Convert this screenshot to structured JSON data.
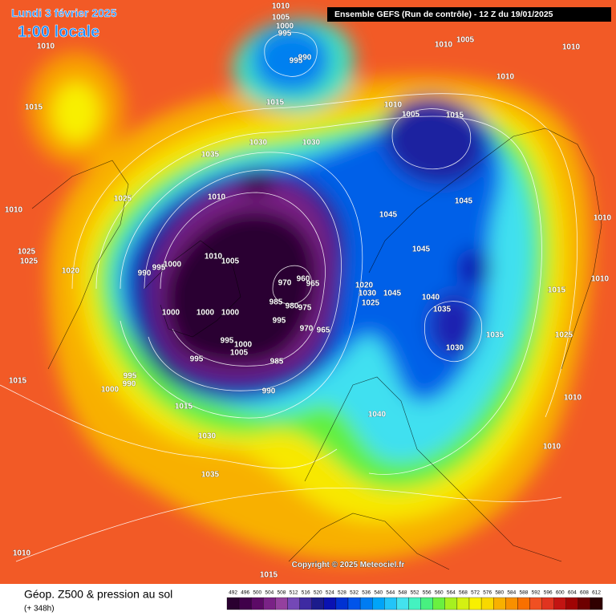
{
  "header": {
    "date": "Lundi 3 février 2025",
    "time": "1:00 locale",
    "run": "Ensemble GEFS  (Run de contrôle)  -  12 Z du 19/01/2025",
    "copyright": "Copyright © 2025 Meteociel.fr"
  },
  "footer": {
    "title": "Géop. Z500 & pression au sol",
    "lead": "(+ 348h)"
  },
  "isobar_labels": [
    "1010",
    "1015",
    "1010",
    "1025",
    "1025",
    "1020",
    "1025",
    "1035",
    "1030",
    "1030",
    "1015",
    "1010",
    "1005",
    "1000",
    "995",
    "990",
    "995",
    "1005",
    "1010",
    "1010",
    "1010",
    "1010",
    "1005",
    "1015",
    "1045",
    "1045",
    "1045",
    "1010",
    "1010",
    "1015",
    "1025",
    "1010",
    "1010",
    "1040",
    "1035",
    "1035",
    "1030",
    "1020",
    "1030",
    "1045",
    "1025",
    "1010",
    "1010",
    "1005",
    "990",
    "995",
    "1000",
    "970",
    "960",
    "965",
    "985",
    "980",
    "975",
    "995",
    "970",
    "965",
    "1000",
    "1000",
    "1000",
    "995",
    "1000",
    "1005",
    "995",
    "985",
    "995",
    "990",
    "1000",
    "1015",
    "1015",
    "990",
    "1040",
    "1030",
    "1035",
    "1010",
    "1015"
  ],
  "colorbar": {
    "ticks": [
      "492",
      "496",
      "500",
      "504",
      "508",
      "512",
      "516",
      "520",
      "524",
      "528",
      "532",
      "536",
      "540",
      "544",
      "548",
      "552",
      "556",
      "560",
      "564",
      "568",
      "572",
      "576",
      "580",
      "584",
      "588",
      "592",
      "596",
      "600",
      "604",
      "608",
      "612"
    ],
    "colors": [
      "#2a0030",
      "#40004a",
      "#5c0a66",
      "#7a2286",
      "#94409e",
      "#7448b6",
      "#3e2aa2",
      "#1c1c8c",
      "#0a12b2",
      "#0032d2",
      "#0054ea",
      "#007cf2",
      "#00a4f8",
      "#22c4f8",
      "#44e2ee",
      "#44f2c0",
      "#48f080",
      "#6af040",
      "#a6f020",
      "#d4f012",
      "#f8f000",
      "#f8d800",
      "#f8b000",
      "#f89000",
      "#f87000",
      "#f05022",
      "#e03420",
      "#c21412",
      "#a00404",
      "#6e0000",
      "#300000"
    ]
  }
}
